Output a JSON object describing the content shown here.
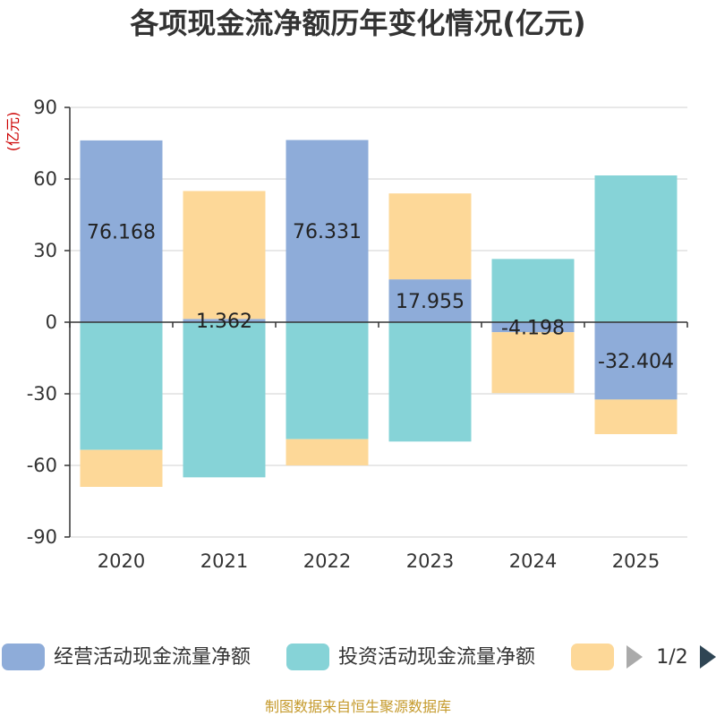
{
  "chart_data": {
    "type": "bar",
    "stacked": true,
    "title": "各项现金流净额历年变化情况(亿元)",
    "ylabel": "(亿元)",
    "ylim": [
      -90,
      90
    ],
    "yticks": [
      90,
      60,
      30,
      0,
      -30,
      -60,
      -90
    ],
    "categories": [
      "2020",
      "2021",
      "2022",
      "2023",
      "2024",
      "2025"
    ],
    "series": [
      {
        "name": "经营活动现金流量净额",
        "color": "#8eacd9",
        "values": [
          76.168,
          1.362,
          76.331,
          17.955,
          -4.198,
          -32.404
        ]
      },
      {
        "name": "投资活动现金流量净额",
        "color": "#86d3d7",
        "values": [
          -53.5,
          -65.0,
          -49.0,
          -50.0,
          26.5,
          61.5
        ]
      },
      {
        "name": "",
        "color": "#fdd898",
        "values": [
          -15.5,
          53.6,
          -11.0,
          36.0,
          -25.5,
          -14.5
        ]
      }
    ],
    "data_labels": [
      "76.168",
      "1.362",
      "76.331",
      "17.955",
      "-4.198",
      "-32.404"
    ],
    "legend": {
      "position": "bottom",
      "entries": [
        "经营活动现金流量净额",
        "投资活动现金流量净额",
        ""
      ],
      "page": "1/2"
    },
    "grid": true
  },
  "source": "制图数据来自恒生聚源数据库"
}
